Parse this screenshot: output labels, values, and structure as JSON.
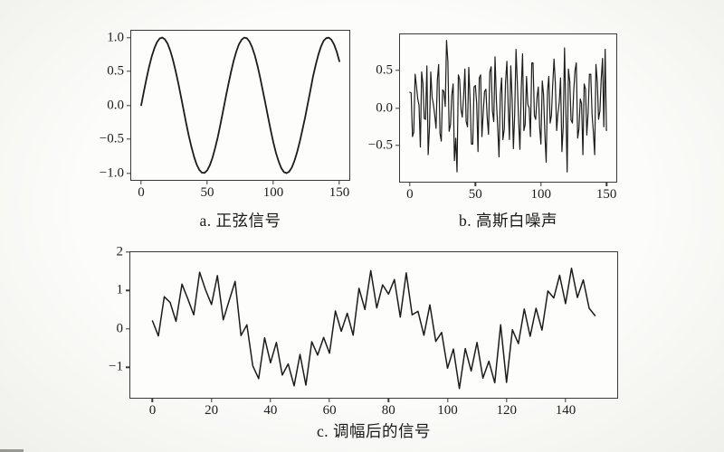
{
  "page": {
    "background": "#f5f5f2",
    "plot_background": "#fdfdfc",
    "line_color": "#1c1c1c",
    "axis_color": "#3a3a3a",
    "text_color": "#1d1d1d"
  },
  "chart_data": [
    {
      "type": "line",
      "title": "a. 正弦信号",
      "xlabel": "",
      "ylabel": "",
      "grid": false,
      "legend": false,
      "line_width": 1.8,
      "x_start": 0,
      "x_step": 2,
      "xlim": [
        -7.5,
        157.5
      ],
      "ylim": [
        -1.1,
        1.1
      ],
      "xticks": [
        0,
        50,
        100,
        150
      ],
      "yticks": [
        {
          "value": 1.0,
          "label": "1.0"
        },
        {
          "value": 0.5,
          "label": "0.5"
        },
        {
          "value": 0.0,
          "label": "0.0"
        },
        {
          "value": -0.5,
          "label": "−0.5"
        },
        {
          "value": -1.0,
          "label": "−1.0"
        }
      ],
      "values": [
        0.0,
        0.199,
        0.389,
        0.565,
        0.717,
        0.841,
        0.932,
        0.985,
        1.0,
        0.974,
        0.909,
        0.808,
        0.675,
        0.516,
        0.335,
        0.141,
        -0.058,
        -0.256,
        -0.443,
        -0.612,
        -0.757,
        -0.872,
        -0.952,
        -0.994,
        -0.996,
        -0.959,
        -0.883,
        -0.773,
        -0.631,
        -0.465,
        -0.279,
        -0.083,
        0.116,
        0.312,
        0.494,
        0.657,
        0.794,
        0.899,
        0.968,
        0.999,
        0.989,
        0.94,
        0.855,
        0.735,
        0.585,
        0.412,
        0.223,
        0.025,
        -0.174,
        -0.366,
        -0.544,
        -0.7,
        -0.828,
        -0.925,
        -0.985,
        -1.0,
        -0.979,
        -0.916,
        -0.818,
        -0.69,
        -0.537,
        -0.366,
        -0.182,
        0.017,
        0.215,
        0.42,
        0.593,
        0.743,
        0.864,
        0.951,
        0.991,
        0.998,
        0.966,
        0.896,
        0.79,
        0.65
      ]
    },
    {
      "type": "line",
      "title": "b. 高斯白噪声",
      "xlabel": "",
      "ylabel": "",
      "grid": false,
      "legend": false,
      "line_width": 1.2,
      "x_start": 0,
      "x_step": 1,
      "xlim": [
        -7.5,
        157.5
      ],
      "ylim": [
        -0.98,
        0.98
      ],
      "xticks": [
        0,
        50,
        100,
        150
      ],
      "yticks": [
        {
          "value": 0.5,
          "label": "0.5"
        },
        {
          "value": 0.0,
          "label": "0.0"
        },
        {
          "value": -0.5,
          "label": "−0.5"
        }
      ],
      "values": [
        0.21,
        0.2,
        -0.38,
        -0.32,
        0.45,
        0.3,
        0.12,
        0.04,
        -0.52,
        0.48,
        0.33,
        -0.14,
        -0.15,
        0.56,
        -0.62,
        -0.25,
        0.48,
        0.14,
        0.05,
        -0.1,
        -0.27,
        0.38,
        0.58,
        -0.34,
        -0.44,
        0.24,
        0.22,
        0.02,
        0.9,
        0.62,
        -0.31,
        -0.22,
        0.17,
        0.32,
        -0.7,
        -0.4,
        -0.85,
        0.44,
        0.38,
        -0.02,
        -0.12,
        0.16,
        0.52,
        -0.18,
        -0.25,
        0.54,
        0.08,
        -0.48,
        -0.48,
        0.28,
        0.3,
        0.06,
        -0.58,
        0.4,
        0.44,
        -0.38,
        -0.05,
        0.22,
        0.25,
        -0.12,
        -0.35,
        0.48,
        0.55,
        -0.04,
        -0.18,
        0.68,
        0.1,
        -0.24,
        -0.65,
        0.18,
        0.4,
        -0.42,
        -0.28,
        0.34,
        0.62,
        0.04,
        -0.42,
        0.56,
        0.15,
        -0.54,
        -0.08,
        0.78,
        0.35,
        -0.18,
        -0.55,
        0.26,
        0.72,
        -0.3,
        -0.22,
        0.42,
        0.05,
        0.0,
        -0.38,
        0.6,
        0.6,
        -0.1,
        -0.15,
        0.14,
        0.28,
        -0.26,
        -0.48,
        0.36,
        0.18,
        -0.36,
        -0.72,
        0.22,
        0.42,
        -0.2,
        -0.1,
        0.3,
        0.65,
        0.34,
        -0.3,
        -0.07,
        0.08,
        0.4,
        -0.58,
        -0.26,
        0.8,
        0.0,
        -0.85,
        0.52,
        0.35,
        -0.16,
        -0.2,
        0.22,
        0.5,
        0.6,
        -0.4,
        -0.28,
        0.12,
        0.06,
        -0.62,
        0.32,
        0.25,
        -0.36,
        -0.05,
        0.45,
        0.45,
        -0.08,
        -0.33,
        -0.62,
        0.58,
        0.35,
        -0.15,
        -0.04,
        0.38,
        0.66,
        -0.25,
        0.78,
        -0.3
      ]
    },
    {
      "type": "line",
      "title": "c. 调幅后的信号",
      "xlabel": "",
      "ylabel": "",
      "grid": false,
      "legend": false,
      "line_width": 1.5,
      "x_start": 0,
      "x_step": 2,
      "xlim": [
        -7.5,
        157.5
      ],
      "ylim": [
        -1.79,
        2.0
      ],
      "xticks": [
        0,
        20,
        40,
        60,
        80,
        100,
        120,
        140
      ],
      "yticks": [
        {
          "value": 2,
          "label": "2"
        },
        {
          "value": 1,
          "label": "1"
        },
        {
          "value": 0,
          "label": "0"
        },
        {
          "value": -1,
          "label": "−1"
        }
      ],
      "values": [
        0.21,
        -0.18,
        0.84,
        0.69,
        0.2,
        1.17,
        0.78,
        0.37,
        1.48,
        1.02,
        0.64,
        1.39,
        0.24,
        0.74,
        1.24,
        -0.17,
        0.11,
        -0.96,
        -1.29,
        -0.23,
        -0.88,
        -0.35,
        -1.2,
        -0.91,
        -1.48,
        -0.66,
        -1.46,
        -0.33,
        -0.68,
        -0.22,
        -0.63,
        0.47,
        -0.06,
        0.41,
        -0.16,
        1.06,
        0.51,
        1.52,
        0.55,
        1.15,
        0.91,
        1.29,
        0.31,
        1.46,
        0.37,
        0.46,
        -0.16,
        0.63,
        -0.32,
        -0.09,
        -1.02,
        -0.52,
        -1.55,
        -0.51,
        -1.09,
        -0.35,
        -1.28,
        -0.84,
        -1.4,
        0.11,
        -1.39,
        -0.02,
        -0.38,
        0.52,
        -0.19,
        0.54,
        -0.03,
        0.99,
        0.81,
        1.4,
        0.66,
        1.58,
        0.82,
        1.28,
        0.54,
        0.35
      ]
    }
  ]
}
